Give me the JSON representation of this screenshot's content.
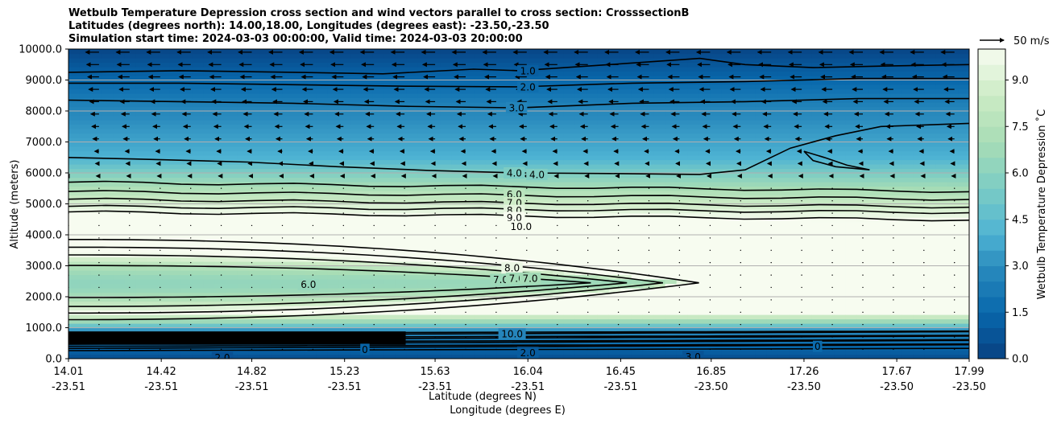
{
  "chart_data": {
    "type": "contour",
    "title_lines": [
      "Wetbulb Temperature Depression cross section and wind vectors parallel to cross section: CrosssectionB",
      "Latitudes (degrees north): 14.00,18.00, Longitudes (degrees east): -23.50,-23.50",
      "Simulation start time: 2024-03-03 00:00:00, Valid time: 2024-03-03 20:00:00"
    ],
    "xlabel_lat": "Latitude (degrees N)",
    "xlabel_lon": "Longitude (degrees E)",
    "ylabel": "Altitude (meters)",
    "ylim": [
      0,
      10000
    ],
    "yticks": [
      "0.0",
      "1000.0",
      "2000.0",
      "3000.0",
      "4000.0",
      "5000.0",
      "6000.0",
      "7000.0",
      "8000.0",
      "9000.0",
      "10000.0"
    ],
    "x_range": [
      14.01,
      17.99
    ],
    "x_ticks": [
      {
        "lat": "14.01",
        "lon": "-23.51"
      },
      {
        "lat": "14.42",
        "lon": "-23.51"
      },
      {
        "lat": "14.82",
        "lon": "-23.51"
      },
      {
        "lat": "15.23",
        "lon": "-23.51"
      },
      {
        "lat": "15.63",
        "lon": "-23.51"
      },
      {
        "lat": "16.04",
        "lon": "-23.51"
      },
      {
        "lat": "16.45",
        "lon": "-23.51"
      },
      {
        "lat": "16.85",
        "lon": "-23.50"
      },
      {
        "lat": "17.26",
        "lon": "-23.50"
      },
      {
        "lat": "17.67",
        "lon": "-23.50"
      },
      {
        "lat": "17.99",
        "lon": "-23.50"
      }
    ],
    "colorbar": {
      "label": "Wetbulb Temperature Depression ˚C",
      "ticks": [
        "0.0",
        "1.5",
        "3.0",
        "4.5",
        "6.0",
        "7.5",
        "9.0"
      ],
      "min": 0,
      "max": 10
    },
    "quiver_key": "50 m/s",
    "contour_labels": [
      {
        "text": "1.0",
        "lat": 16.04,
        "alt": 9300
      },
      {
        "text": "2.0",
        "lat": 16.04,
        "alt": 8780
      },
      {
        "text": "3.0",
        "lat": 15.99,
        "alt": 8110
      },
      {
        "text": "4.0",
        "lat": 15.98,
        "alt": 6000
      },
      {
        "text": "4.0",
        "lat": 16.08,
        "alt": 5950
      },
      {
        "text": "6.0",
        "lat": 15.98,
        "alt": 5310
      },
      {
        "text": "7.0",
        "lat": 15.98,
        "alt": 5040
      },
      {
        "text": "8.0",
        "lat": 15.98,
        "alt": 4790
      },
      {
        "text": "9.0",
        "lat": 15.98,
        "alt": 4560
      },
      {
        "text": "10.0",
        "lat": 16.01,
        "alt": 4270
      },
      {
        "text": "8.0",
        "lat": 15.97,
        "alt": 2930
      },
      {
        "text": "7.0",
        "lat": 15.92,
        "alt": 2560
      },
      {
        "text": "7.0",
        "lat": 15.99,
        "alt": 2600
      },
      {
        "text": "7.0",
        "lat": 16.05,
        "alt": 2600
      },
      {
        "text": "6.0",
        "lat": 15.07,
        "alt": 2400
      },
      {
        "text": "10.0",
        "lat": 15.97,
        "alt": 800
      },
      {
        "text": "3.0",
        "lat": 16.77,
        "alt": 70
      },
      {
        "text": "2.0",
        "lat": 14.69,
        "alt": 40
      },
      {
        "text": "2.0",
        "lat": 16.04,
        "alt": 200
      },
      {
        "text": "0",
        "lat": 15.32,
        "alt": 300
      },
      {
        "text": "0",
        "lat": 17.32,
        "alt": 400
      }
    ]
  }
}
